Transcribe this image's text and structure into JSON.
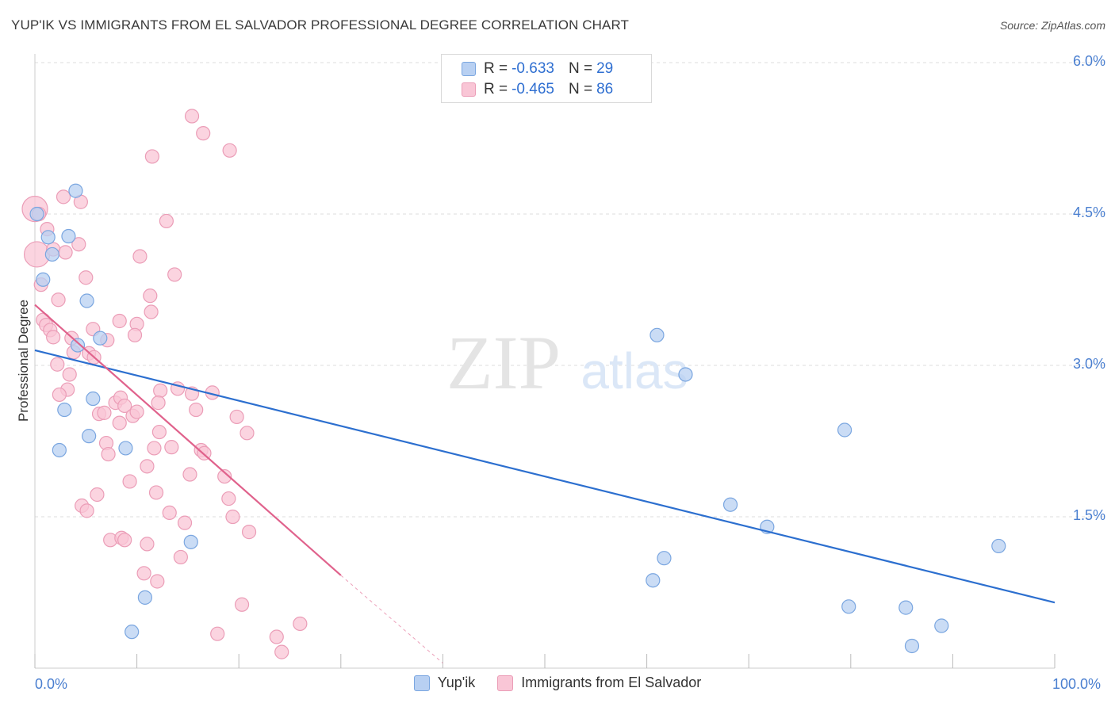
{
  "title": "YUP'IK VS IMMIGRANTS FROM EL SALVADOR PROFESSIONAL DEGREE CORRELATION CHART",
  "source": "Source: ZipAtlas.com",
  "watermark": {
    "zip": "ZIP",
    "atlas": "atlas"
  },
  "legend": {
    "r_label": "R =",
    "n_label": "N =",
    "yupik": {
      "r": "-0.633",
      "n": "29"
    },
    "salvador": {
      "r": "-0.465",
      "n": "86"
    }
  },
  "colors": {
    "blue_fill": "#b8d0f2",
    "blue_stroke": "#7aa6e0",
    "blue_line": "#2c6fcf",
    "pink_fill": "#f9c6d6",
    "pink_stroke": "#eb9db7",
    "pink_line": "#e0628c",
    "axis_text": "#4a7fd0",
    "grid": "#dddddd"
  },
  "chart_data": {
    "type": "scatter",
    "title": "YUP'IK VS IMMIGRANTS FROM EL SALVADOR PROFESSIONAL DEGREE CORRELATION CHART",
    "xlabel": "",
    "ylabel": "Professional Degree",
    "xlim": [
      0,
      100
    ],
    "ylim": [
      0,
      6.2
    ],
    "x_tick_labels": [
      "0.0%",
      "100.0%"
    ],
    "y_ticks": [
      1.5,
      3.0,
      4.5,
      6.0
    ],
    "y_tick_labels": [
      "1.5%",
      "3.0%",
      "4.5%",
      "6.0%"
    ],
    "grid": true,
    "legend_position": "top-center",
    "series": [
      {
        "name": "Yup'ik",
        "r": -0.633,
        "n": 29,
        "trend": {
          "x0": 0.0,
          "y0": 3.15,
          "x1": 100.0,
          "y1": 0.65
        },
        "points": [
          {
            "x": 0.2,
            "y": 4.5
          },
          {
            "x": 4.0,
            "y": 4.73
          },
          {
            "x": 3.3,
            "y": 4.28
          },
          {
            "x": 1.3,
            "y": 4.27
          },
          {
            "x": 1.7,
            "y": 4.1
          },
          {
            "x": 0.8,
            "y": 3.85
          },
          {
            "x": 5.1,
            "y": 3.64
          },
          {
            "x": 6.4,
            "y": 3.27
          },
          {
            "x": 4.2,
            "y": 3.2
          },
          {
            "x": 5.7,
            "y": 2.67
          },
          {
            "x": 2.9,
            "y": 2.56
          },
          {
            "x": 5.3,
            "y": 2.3
          },
          {
            "x": 2.4,
            "y": 2.16
          },
          {
            "x": 8.9,
            "y": 2.18
          },
          {
            "x": 15.3,
            "y": 1.25
          },
          {
            "x": 10.8,
            "y": 0.7
          },
          {
            "x": 9.5,
            "y": 0.36
          },
          {
            "x": 61.0,
            "y": 3.3
          },
          {
            "x": 63.8,
            "y": 2.91
          },
          {
            "x": 79.4,
            "y": 2.36
          },
          {
            "x": 68.2,
            "y": 1.62
          },
          {
            "x": 71.8,
            "y": 1.4
          },
          {
            "x": 61.7,
            "y": 1.09
          },
          {
            "x": 60.6,
            "y": 0.87
          },
          {
            "x": 79.8,
            "y": 0.61
          },
          {
            "x": 85.4,
            "y": 0.6
          },
          {
            "x": 88.9,
            "y": 0.42
          },
          {
            "x": 86.0,
            "y": 0.22
          },
          {
            "x": 94.5,
            "y": 1.21
          }
        ]
      },
      {
        "name": "Immigrants from El Salvador",
        "r": -0.465,
        "n": 86,
        "trend": {
          "x0": 0.0,
          "y0": 3.6,
          "x1": 30.0,
          "y1": 0.92,
          "dashed_to": {
            "x": 40.0,
            "y": 0.05
          }
        },
        "points": [
          {
            "x": 0.0,
            "y": 4.55,
            "big": true
          },
          {
            "x": 0.2,
            "y": 4.1,
            "big": true
          },
          {
            "x": 0.6,
            "y": 3.8
          },
          {
            "x": 1.2,
            "y": 4.35
          },
          {
            "x": 2.8,
            "y": 4.67
          },
          {
            "x": 4.5,
            "y": 4.62
          },
          {
            "x": 1.8,
            "y": 4.15
          },
          {
            "x": 3.0,
            "y": 4.12
          },
          {
            "x": 4.3,
            "y": 4.2
          },
          {
            "x": 5.0,
            "y": 3.87
          },
          {
            "x": 2.3,
            "y": 3.65
          },
          {
            "x": 0.8,
            "y": 3.45
          },
          {
            "x": 1.1,
            "y": 3.4
          },
          {
            "x": 1.5,
            "y": 3.35
          },
          {
            "x": 1.8,
            "y": 3.28
          },
          {
            "x": 3.6,
            "y": 3.27
          },
          {
            "x": 3.8,
            "y": 3.13
          },
          {
            "x": 5.3,
            "y": 3.12
          },
          {
            "x": 5.7,
            "y": 3.36
          },
          {
            "x": 7.1,
            "y": 3.25
          },
          {
            "x": 2.2,
            "y": 3.01
          },
          {
            "x": 3.4,
            "y": 2.91
          },
          {
            "x": 3.2,
            "y": 2.76
          },
          {
            "x": 2.4,
            "y": 2.71
          },
          {
            "x": 5.8,
            "y": 3.08
          },
          {
            "x": 8.3,
            "y": 3.44
          },
          {
            "x": 10.0,
            "y": 3.41
          },
          {
            "x": 9.8,
            "y": 3.3
          },
          {
            "x": 11.3,
            "y": 3.69
          },
          {
            "x": 11.4,
            "y": 3.53
          },
          {
            "x": 13.7,
            "y": 3.9
          },
          {
            "x": 12.9,
            "y": 4.43
          },
          {
            "x": 10.3,
            "y": 4.08
          },
          {
            "x": 11.5,
            "y": 5.07
          },
          {
            "x": 15.4,
            "y": 5.47
          },
          {
            "x": 16.5,
            "y": 5.3
          },
          {
            "x": 19.1,
            "y": 5.13
          },
          {
            "x": 6.3,
            "y": 2.52
          },
          {
            "x": 7.9,
            "y": 2.63
          },
          {
            "x": 8.4,
            "y": 2.68
          },
          {
            "x": 8.8,
            "y": 2.6
          },
          {
            "x": 9.6,
            "y": 2.5
          },
          {
            "x": 10.0,
            "y": 2.54
          },
          {
            "x": 12.3,
            "y": 2.75
          },
          {
            "x": 12.1,
            "y": 2.63
          },
          {
            "x": 14.0,
            "y": 2.77
          },
          {
            "x": 15.4,
            "y": 2.72
          },
          {
            "x": 15.8,
            "y": 2.56
          },
          {
            "x": 17.4,
            "y": 2.73
          },
          {
            "x": 19.8,
            "y": 2.49
          },
          {
            "x": 20.8,
            "y": 2.33
          },
          {
            "x": 6.8,
            "y": 2.53
          },
          {
            "x": 7.0,
            "y": 2.23
          },
          {
            "x": 7.2,
            "y": 2.12
          },
          {
            "x": 8.3,
            "y": 2.43
          },
          {
            "x": 11.0,
            "y": 2.0
          },
          {
            "x": 11.7,
            "y": 2.18
          },
          {
            "x": 12.2,
            "y": 2.34
          },
          {
            "x": 13.4,
            "y": 2.19
          },
          {
            "x": 15.2,
            "y": 1.92
          },
          {
            "x": 16.3,
            "y": 2.16
          },
          {
            "x": 16.6,
            "y": 2.13
          },
          {
            "x": 18.6,
            "y": 1.9
          },
          {
            "x": 9.3,
            "y": 1.85
          },
          {
            "x": 11.9,
            "y": 1.74
          },
          {
            "x": 6.1,
            "y": 1.72
          },
          {
            "x": 4.6,
            "y": 1.61
          },
          {
            "x": 5.1,
            "y": 1.56
          },
          {
            "x": 13.2,
            "y": 1.54
          },
          {
            "x": 14.7,
            "y": 1.44
          },
          {
            "x": 19.0,
            "y": 1.68
          },
          {
            "x": 19.4,
            "y": 1.5
          },
          {
            "x": 21.0,
            "y": 1.35
          },
          {
            "x": 7.4,
            "y": 1.27
          },
          {
            "x": 8.5,
            "y": 1.29
          },
          {
            "x": 8.8,
            "y": 1.27
          },
          {
            "x": 11.0,
            "y": 1.23
          },
          {
            "x": 14.3,
            "y": 1.1
          },
          {
            "x": 10.7,
            "y": 0.94
          },
          {
            "x": 12.0,
            "y": 0.86
          },
          {
            "x": 20.3,
            "y": 0.63
          },
          {
            "x": 26.0,
            "y": 0.44
          },
          {
            "x": 17.9,
            "y": 0.34
          },
          {
            "x": 23.7,
            "y": 0.31
          },
          {
            "x": 24.2,
            "y": 0.16
          },
          {
            "x": 0.4,
            "y": 4.5
          }
        ]
      }
    ]
  }
}
